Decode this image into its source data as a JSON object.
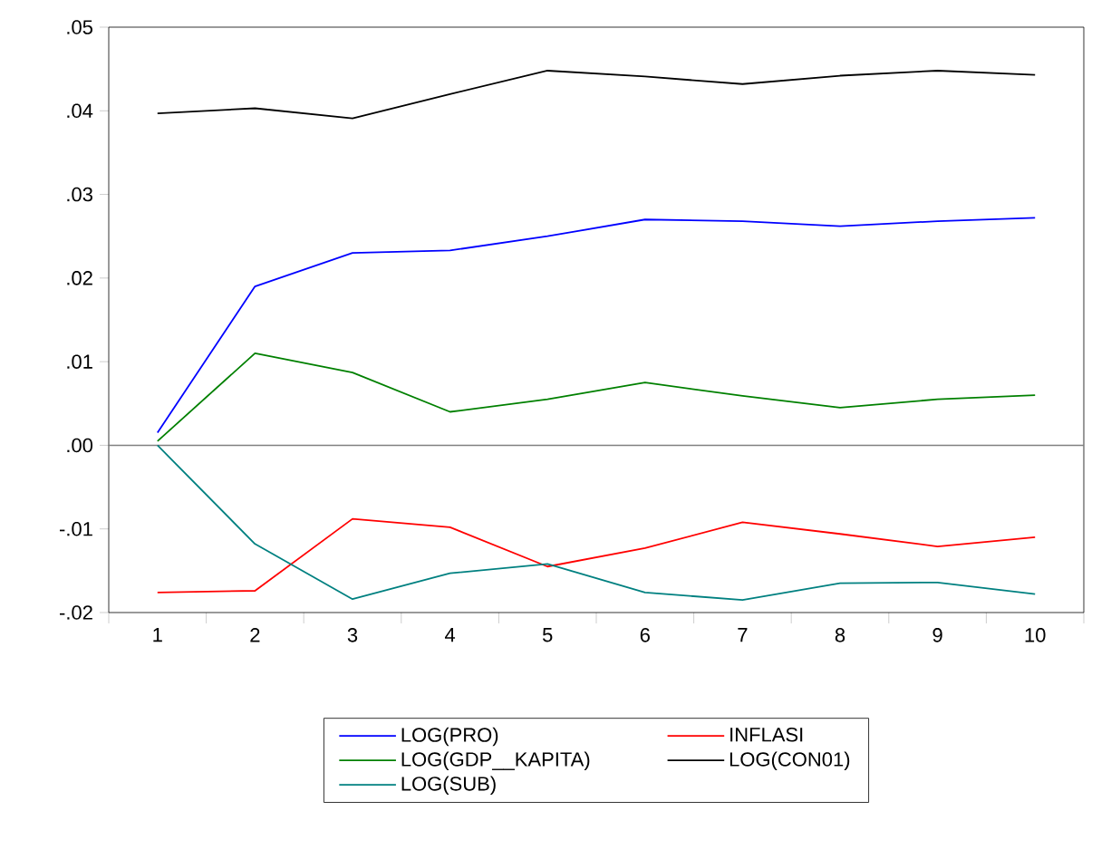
{
  "chart_data": {
    "type": "line",
    "categories": [
      "1",
      "2",
      "3",
      "4",
      "5",
      "6",
      "7",
      "8",
      "9",
      "10"
    ],
    "ylim": [
      -0.02,
      0.05
    ],
    "yticks": [
      {
        "value": -0.02,
        "label": "-.02"
      },
      {
        "value": -0.01,
        "label": "-.01"
      },
      {
        "value": 0,
        "label": ".00"
      },
      {
        "value": 0.01,
        "label": ".01"
      },
      {
        "value": 0.02,
        "label": ".02"
      },
      {
        "value": 0.03,
        "label": ".03"
      },
      {
        "value": 0.04,
        "label": ".04"
      },
      {
        "value": 0.05,
        "label": ".05"
      }
    ],
    "ref_lines": [
      {
        "axis": "y",
        "value": 0,
        "color": "#808080"
      }
    ],
    "legend": "bottom",
    "grid": false,
    "marker": "none",
    "line_style": "solid",
    "series": [
      {
        "name": "LOG(PRO)",
        "color": "#0000ff",
        "values": [
          0.0015,
          0.019,
          0.023,
          0.0233,
          0.025,
          0.027,
          0.0268,
          0.0262,
          0.0268,
          0.0272
        ]
      },
      {
        "name": "INFLASI",
        "color": "#ff0000",
        "values": [
          -0.0176,
          -0.0174,
          -0.0088,
          -0.0098,
          -0.0145,
          -0.0123,
          -0.0092,
          -0.0106,
          -0.0121,
          -0.011
        ]
      },
      {
        "name": "LOG(GDP__KAPITA)",
        "color": "#008000",
        "values": [
          0.0005,
          0.011,
          0.0087,
          0.004,
          0.0055,
          0.0075,
          0.0059,
          0.0045,
          0.0055,
          0.006
        ]
      },
      {
        "name": "LOG(CON01)",
        "color": "#000000",
        "values": [
          0.0397,
          0.0403,
          0.0391,
          0.042,
          0.0448,
          0.0441,
          0.0432,
          0.0442,
          0.0448,
          0.0443
        ]
      },
      {
        "name": "LOG(SUB)",
        "color": "#008080",
        "values": [
          0.0,
          -0.0118,
          -0.0184,
          -0.0153,
          -0.0142,
          -0.0176,
          -0.0185,
          -0.0165,
          -0.0164,
          -0.0178
        ]
      }
    ]
  }
}
